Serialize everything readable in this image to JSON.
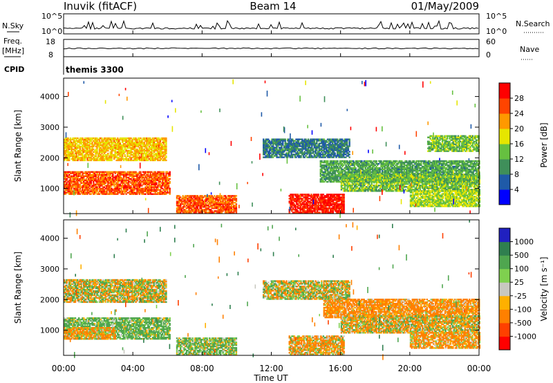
{
  "header": {
    "title_left": "Inuvik (fitACF)",
    "title_center": "Beam 14",
    "title_right": "01/May/2009"
  },
  "top_panels": {
    "nsky_label": "N.Sky",
    "nsearch_label": "N.Search",
    "left_ticks": [
      "10^5",
      "10^0"
    ],
    "right_ticks": [
      "10^5",
      "10^0"
    ],
    "freq_label": "Freq.",
    "freq_unit": "[MHz]",
    "freq_ticks": [
      "18",
      "8"
    ],
    "nave_label": "Nave",
    "nave_ticks": [
      "60",
      "0"
    ],
    "cpid_label": "CPID",
    "cpid_value": "themis 3300"
  },
  "x_axis": {
    "label": "Time UT",
    "ticks": [
      "00:00",
      "04:00",
      "08:00",
      "12:00",
      "16:00",
      "20:00",
      "00:00"
    ]
  },
  "power_panel": {
    "ylabel": "Slant Range [km]",
    "yticks": [
      "4000",
      "3000",
      "2000",
      "1000"
    ],
    "colorbar_label": "Power [dB]",
    "colorbar_ticks": [
      "28",
      "24",
      "20",
      "16",
      "12",
      "8",
      "4"
    ],
    "colors": [
      "#0000ff",
      "#1f5aa8",
      "#3f8f5a",
      "#66c040",
      "#e6e600",
      "#ff9900",
      "#ff4400",
      "#ff0000"
    ]
  },
  "velocity_panel": {
    "ylabel": "Slant Range [km]",
    "yticks": [
      "4000",
      "3000",
      "2000",
      "1000"
    ],
    "colorbar_label": "Velocity [m s⁻¹]",
    "colorbar_ticks": [
      "1000",
      "500",
      "100",
      "25",
      "-25",
      "-100",
      "-500",
      "-1000"
    ],
    "colors": [
      "#2020c0",
      "#2f7f4f",
      "#4fa64f",
      "#7fd04f",
      "#c8c8c0",
      "#ffb000",
      "#ff8000",
      "#ff4000",
      "#ff0000"
    ]
  },
  "chart_data": [
    {
      "type": "heatmap",
      "title": "Beam 14",
      "quantity": "Power [dB]",
      "xlabel": "Time UT",
      "ylabel": "Slant Range [km]",
      "xlim_hours": [
        0,
        24
      ],
      "ylim_km": [
        180,
        4600
      ],
      "color_range": [
        0,
        30
      ],
      "regions": [
        {
          "t0": 0.0,
          "t1": 5.9,
          "r0": 1900,
          "r1": 2650,
          "value": 19
        },
        {
          "t0": 0.0,
          "t1": 6.1,
          "r0": 800,
          "r1": 1550,
          "value": 24
        },
        {
          "t0": 6.5,
          "t1": 10.0,
          "r0": 200,
          "r1": 750,
          "value": 24
        },
        {
          "t0": 13.0,
          "t1": 16.2,
          "r0": 200,
          "r1": 800,
          "value": 27
        },
        {
          "t0": 14.8,
          "t1": 24.0,
          "r0": 1200,
          "r1": 1900,
          "value": 11
        },
        {
          "t0": 16.0,
          "t1": 24.0,
          "r0": 900,
          "r1": 1450,
          "value": 13
        },
        {
          "t0": 21.0,
          "t1": 24.0,
          "r0": 2200,
          "r1": 2700,
          "value": 13
        },
        {
          "t0": 11.5,
          "t1": 16.5,
          "r0": 2000,
          "r1": 2600,
          "value": 8
        },
        {
          "t0": 20.0,
          "t1": 24.0,
          "r0": 400,
          "r1": 900,
          "value": 15
        }
      ]
    },
    {
      "type": "heatmap",
      "quantity": "Velocity [m s⁻¹]",
      "xlabel": "Time UT",
      "ylabel": "Slant Range [km]",
      "xlim_hours": [
        0,
        24
      ],
      "ylim_km": [
        180,
        4600
      ],
      "color_range": [
        -1000,
        1000
      ],
      "regions": [
        {
          "t0": 0.0,
          "t1": 5.9,
          "r0": 1900,
          "r1": 2650,
          "value": 0
        },
        {
          "t0": 0.0,
          "t1": 6.1,
          "r0": 700,
          "r1": 1400,
          "value": 180
        },
        {
          "t0": 0.0,
          "t1": 3.0,
          "r0": 700,
          "r1": 1100,
          "value": -140
        },
        {
          "t0": 6.5,
          "t1": 10.0,
          "r0": 180,
          "r1": 750,
          "value": 120
        },
        {
          "t0": 13.0,
          "t1": 16.2,
          "r0": 200,
          "r1": 800,
          "value": -110
        },
        {
          "t0": 15.0,
          "t1": 24.0,
          "r0": 1400,
          "r1": 2000,
          "value": -200
        },
        {
          "t0": 16.0,
          "t1": 24.0,
          "r0": 900,
          "r1": 1450,
          "value": -40
        },
        {
          "t0": 11.5,
          "t1": 16.5,
          "r0": 2000,
          "r1": 2600,
          "value": 0
        },
        {
          "t0": 20.0,
          "t1": 24.0,
          "r0": 400,
          "r1": 900,
          "value": -160
        }
      ]
    }
  ]
}
